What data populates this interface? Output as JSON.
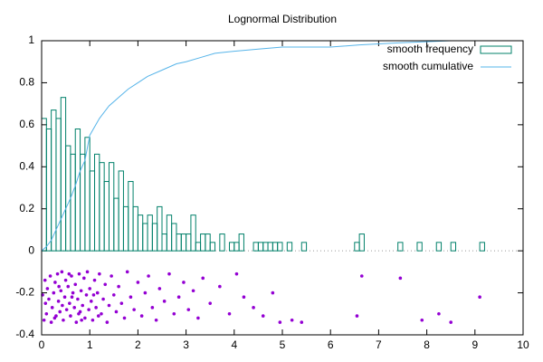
{
  "chart_data": {
    "type": "histogram",
    "title": "Lognormal Distribution",
    "xlim": [
      0,
      10
    ],
    "ylim": [
      -0.4,
      1
    ],
    "xticks": [
      0,
      1,
      2,
      3,
      4,
      5,
      6,
      7,
      8,
      9,
      10
    ],
    "yticks": [
      -0.4,
      -0.2,
      0,
      0.2,
      0.4,
      0.6,
      0.8,
      1
    ],
    "legend": "top-right",
    "series": [
      {
        "type": "histogram",
        "name": "smooth frequency",
        "color": "#00806a",
        "bins": [
          0,
          0.1,
          0.2,
          0.3,
          0.4,
          0.5,
          0.6,
          0.7,
          0.8,
          0.9,
          1,
          1.1,
          1.2,
          1.3,
          1.4,
          1.5,
          1.6,
          1.7,
          1.8,
          1.9,
          2,
          2.1,
          2.2,
          2.3,
          2.4,
          2.5,
          2.6,
          2.7,
          2.8,
          2.9,
          3,
          3.1,
          3.2,
          3.3,
          3.4,
          3.5,
          3.6,
          3.7,
          3.8,
          3.9,
          4,
          4.1,
          4.2,
          4.3,
          4.4,
          4.5,
          4.6,
          4.7,
          4.8,
          4.9,
          5,
          5.1,
          5.2,
          5.3,
          5.4,
          5.5,
          5.6,
          5.7,
          5.8,
          5.9,
          6,
          6.1,
          6.2,
          6.3,
          6.4,
          6.5,
          6.6,
          6.7,
          6.8,
          6.9,
          7,
          7.1,
          7.2,
          7.3,
          7.4,
          7.5,
          7.6,
          7.7,
          7.8,
          7.9,
          8,
          8.1,
          8.2,
          8.3,
          8.4,
          8.5,
          8.6,
          8.7,
          8.8,
          8.9,
          9,
          9.1,
          9.2
        ],
        "values": [
          0.63,
          0.58,
          0.67,
          0.63,
          0.73,
          0.5,
          0.46,
          0.58,
          0.46,
          0.54,
          0.38,
          0.46,
          0.42,
          0.33,
          0.42,
          0.25,
          0.38,
          0.21,
          0.33,
          0.21,
          0.17,
          0.13,
          0.17,
          0.13,
          0.21,
          0.08,
          0.17,
          0.13,
          0.08,
          0.08,
          0.08,
          0.17,
          0.04,
          0.08,
          0.08,
          0.04,
          0,
          0.08,
          0,
          0.04,
          0.04,
          0.08,
          0,
          0,
          0.04,
          0.04,
          0.04,
          0.04,
          0.04,
          0.04,
          0,
          0.04,
          0,
          0,
          0.04,
          0,
          0,
          0,
          0,
          0,
          0,
          0,
          0,
          0,
          0,
          0.04,
          0.08,
          0,
          0,
          0,
          0,
          0,
          0,
          0,
          0.04,
          0,
          0,
          0,
          0.04,
          0,
          0,
          0,
          0.04,
          0,
          0,
          0.04,
          0,
          0,
          0,
          0,
          0,
          0.04
        ]
      },
      {
        "type": "line",
        "name": "smooth cumulative",
        "color": "#56b4e9",
        "x": [
          0,
          0.1,
          0.2,
          0.3,
          0.4,
          0.5,
          0.6,
          0.7,
          0.8,
          0.9,
          1,
          1.2,
          1.4,
          1.6,
          1.8,
          2,
          2.2,
          2.5,
          2.8,
          3,
          3.3,
          3.6,
          4,
          4.5,
          5,
          6,
          6.6,
          7.4,
          8.5,
          9.1
        ],
        "values": [
          0,
          0.02,
          0.05,
          0.1,
          0.15,
          0.2,
          0.25,
          0.31,
          0.38,
          0.43,
          0.55,
          0.63,
          0.69,
          0.73,
          0.77,
          0.8,
          0.83,
          0.86,
          0.89,
          0.9,
          0.92,
          0.94,
          0.95,
          0.96,
          0.97,
          0.97,
          0.98,
          0.99,
          1,
          1
        ]
      },
      {
        "type": "scatter",
        "color": "#9400d3",
        "x": [
          0.02,
          0.05,
          0.08,
          0.1,
          0.12,
          0.15,
          0.18,
          0.2,
          0.22,
          0.25,
          0.28,
          0.3,
          0.33,
          0.35,
          0.38,
          0.4,
          0.42,
          0.45,
          0.48,
          0.5,
          0.52,
          0.55,
          0.58,
          0.6,
          0.62,
          0.65,
          0.68,
          0.7,
          0.72,
          0.75,
          0.78,
          0.8,
          0.82,
          0.85,
          0.88,
          0.9,
          0.93,
          0.95,
          0.98,
          1.0,
          1.03,
          1.06,
          1.1,
          1.13,
          1.16,
          1.2,
          1.24,
          1.28,
          1.32,
          1.36,
          1.4,
          1.45,
          1.5,
          1.55,
          1.6,
          1.66,
          1.72,
          1.78,
          1.85,
          1.92,
          2.0,
          2.08,
          2.15,
          2.22,
          2.3,
          2.38,
          2.45,
          2.55,
          2.65,
          2.75,
          2.85,
          2.95,
          3.05,
          3.15,
          3.25,
          3.35,
          3.5,
          3.7,
          3.9,
          4.05,
          4.2,
          4.4,
          4.6,
          4.8,
          4.95,
          5.2,
          5.4,
          6.55,
          6.65,
          7.45,
          7.9,
          8.25,
          8.5,
          9.1,
          0.07,
          0.27,
          0.43,
          0.63,
          0.83,
          1.08,
          1.18,
          0.36,
          0.57,
          0.77
        ],
        "values": [
          -0.21,
          -0.33,
          -0.25,
          -0.3,
          -0.18,
          -0.23,
          -0.12,
          -0.34,
          -0.27,
          -0.2,
          -0.15,
          -0.31,
          -0.11,
          -0.24,
          -0.29,
          -0.19,
          -0.1,
          -0.33,
          -0.22,
          -0.14,
          -0.28,
          -0.17,
          -0.25,
          -0.31,
          -0.12,
          -0.2,
          -0.27,
          -0.16,
          -0.34,
          -0.23,
          -0.11,
          -0.29,
          -0.19,
          -0.26,
          -0.13,
          -0.32,
          -0.21,
          -0.1,
          -0.28,
          -0.18,
          -0.24,
          -0.33,
          -0.14,
          -0.27,
          -0.2,
          -0.11,
          -0.3,
          -0.23,
          -0.16,
          -0.34,
          -0.26,
          -0.12,
          -0.21,
          -0.29,
          -0.17,
          -0.25,
          -0.32,
          -0.1,
          -0.22,
          -0.28,
          -0.15,
          -0.31,
          -0.2,
          -0.12,
          -0.27,
          -0.33,
          -0.18,
          -0.24,
          -0.11,
          -0.3,
          -0.22,
          -0.15,
          -0.28,
          -0.19,
          -0.32,
          -0.13,
          -0.25,
          -0.17,
          -0.3,
          -0.11,
          -0.22,
          -0.27,
          -0.31,
          -0.2,
          -0.34,
          -0.33,
          -0.34,
          -0.31,
          -0.12,
          -0.13,
          -0.33,
          -0.3,
          -0.34,
          -0.22,
          -0.14,
          -0.32,
          -0.26,
          -0.22,
          -0.33,
          -0.21,
          -0.31,
          -0.17,
          -0.11,
          -0.3
        ]
      }
    ]
  }
}
